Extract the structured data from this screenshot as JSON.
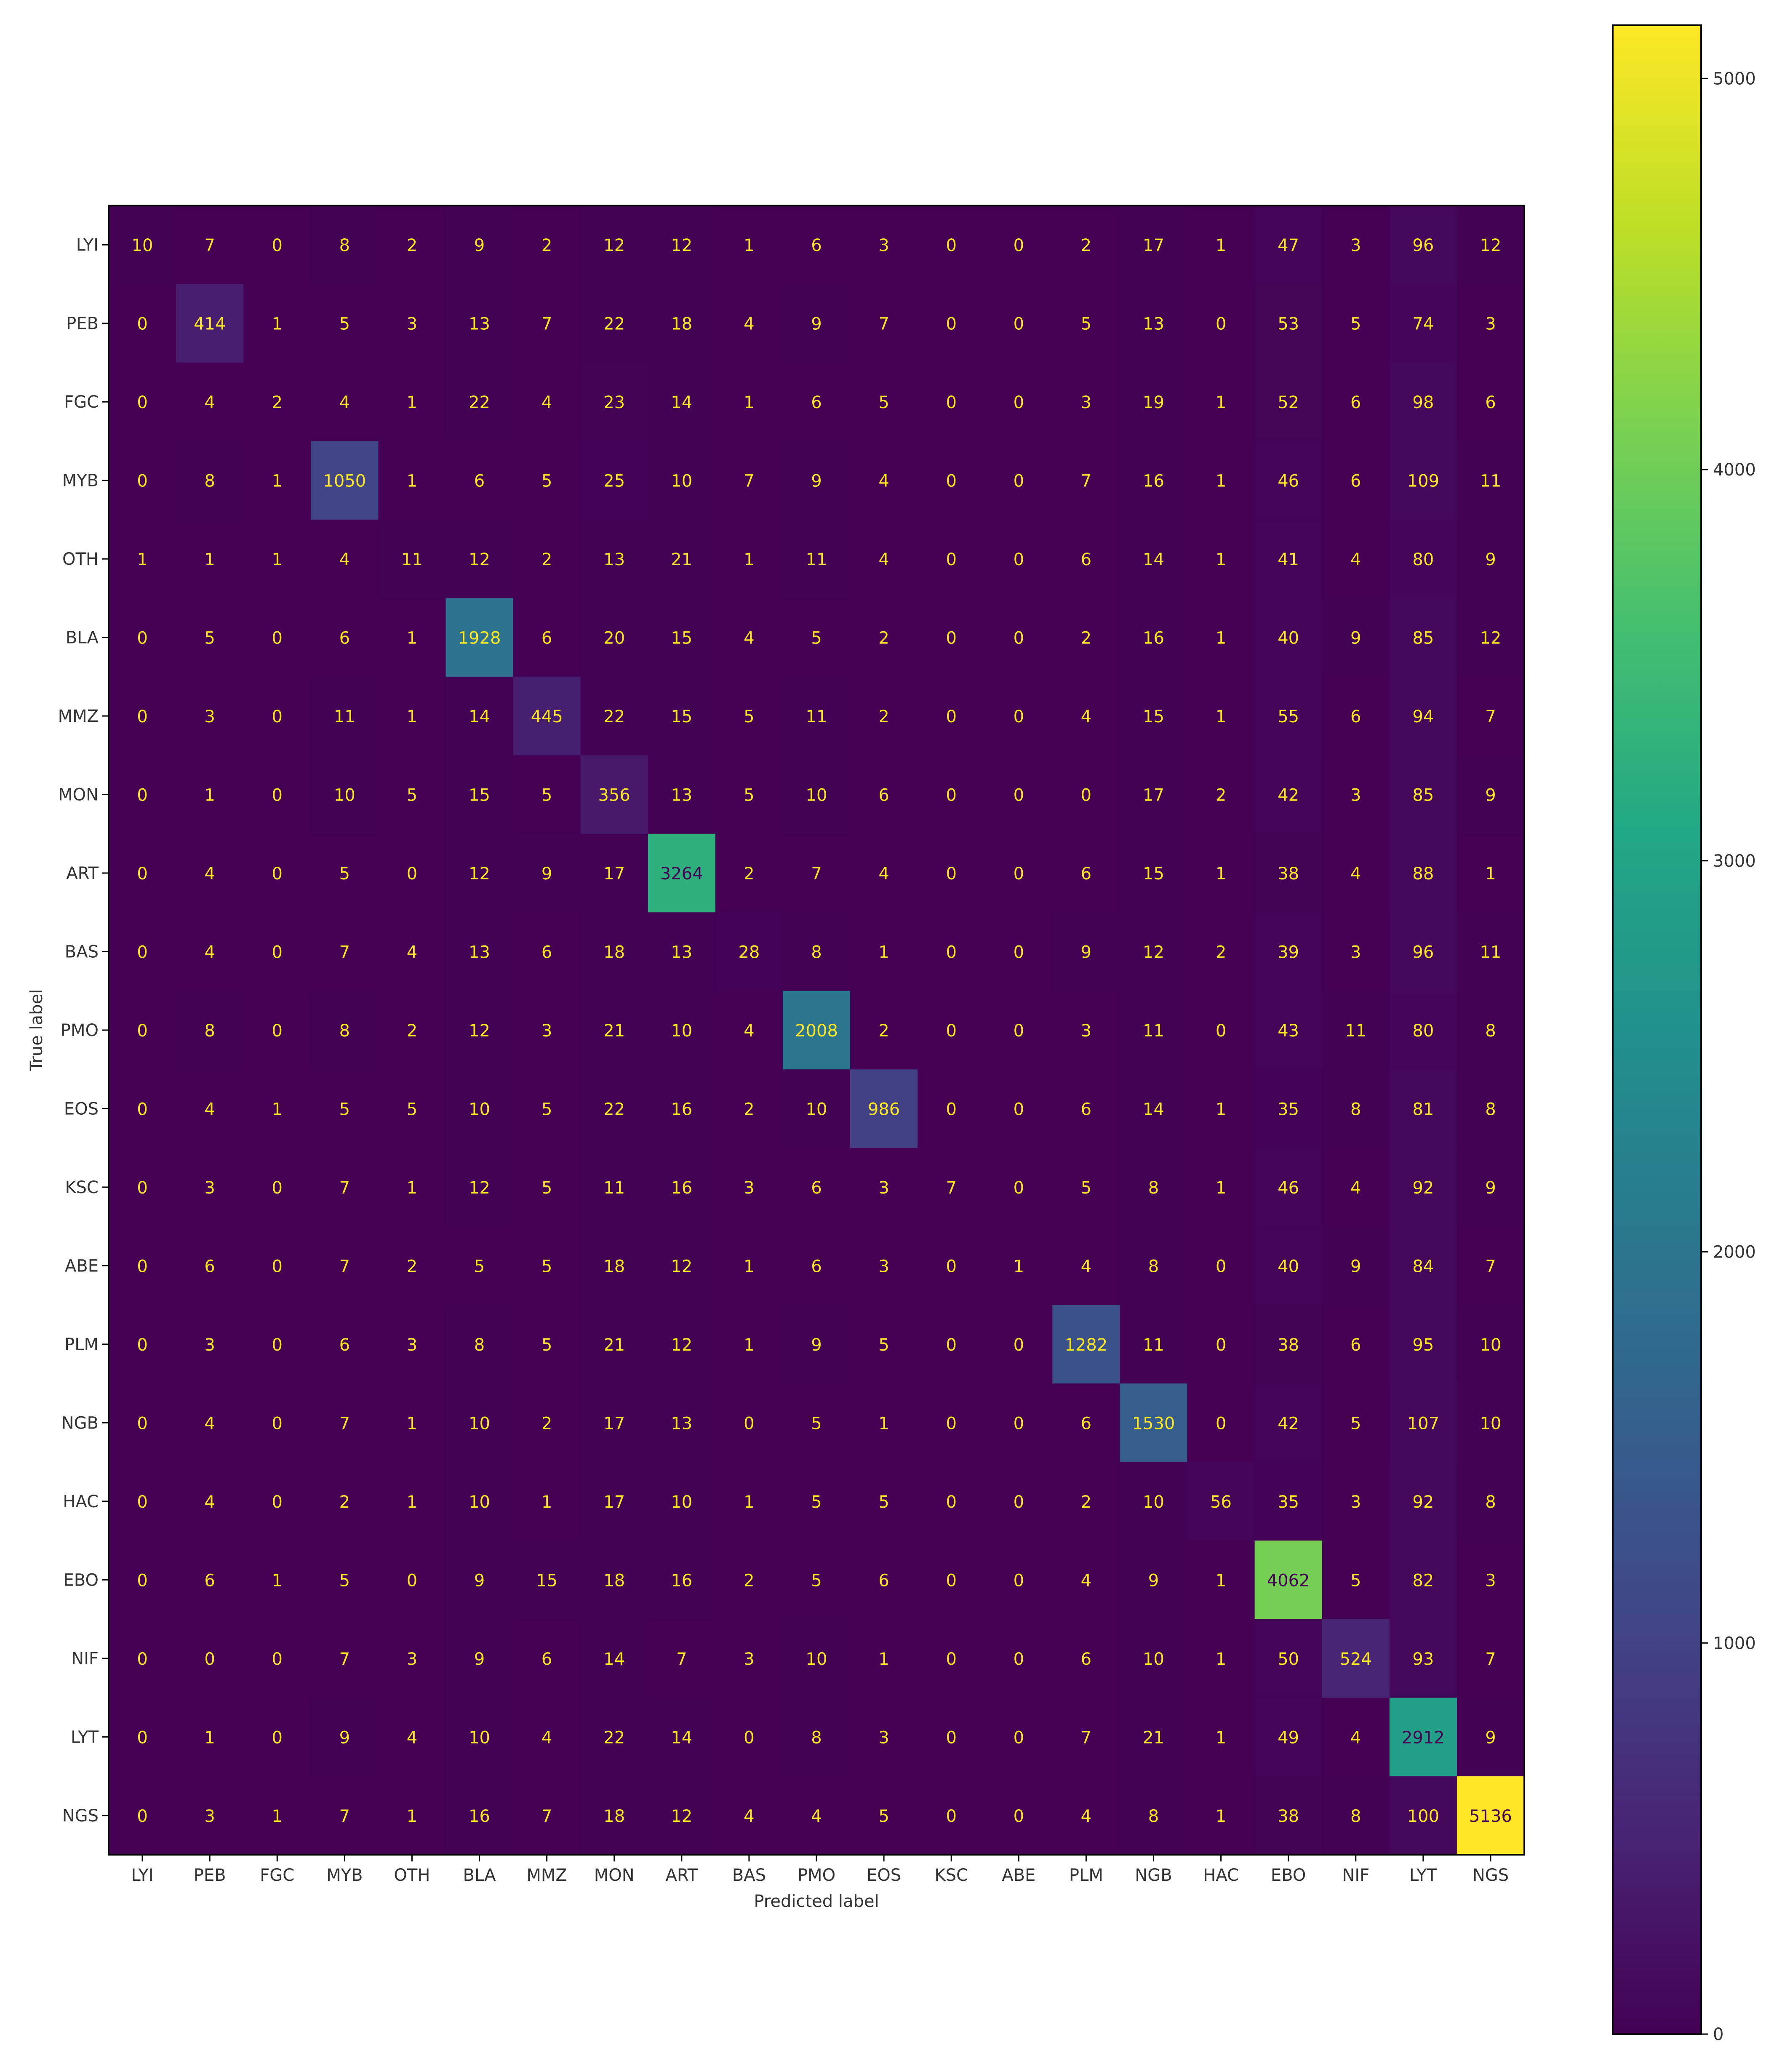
{
  "chart_data": {
    "type": "heatmap",
    "title": "",
    "xlabel": "Predicted label",
    "ylabel": "True label",
    "x_categories": [
      "LYI",
      "PEB",
      "FGC",
      "MYB",
      "OTH",
      "BLA",
      "MMZ",
      "MON",
      "ART",
      "BAS",
      "PMO",
      "EOS",
      "KSC",
      "ABE",
      "PLM",
      "NGB",
      "HAC",
      "EBO",
      "NIF",
      "LYT",
      "NGS"
    ],
    "y_categories": [
      "LYI",
      "PEB",
      "FGC",
      "MYB",
      "OTH",
      "BLA",
      "MMZ",
      "MON",
      "ART",
      "BAS",
      "PMO",
      "EOS",
      "KSC",
      "ABE",
      "PLM",
      "NGB",
      "HAC",
      "EBO",
      "NIF",
      "LYT",
      "NGS"
    ],
    "matrix": [
      [
        10,
        7,
        0,
        8,
        2,
        9,
        2,
        12,
        12,
        1,
        6,
        3,
        0,
        0,
        2,
        17,
        1,
        47,
        3,
        96,
        12
      ],
      [
        0,
        414,
        1,
        5,
        3,
        13,
        7,
        22,
        18,
        4,
        9,
        7,
        0,
        0,
        5,
        13,
        0,
        53,
        5,
        74,
        3
      ],
      [
        0,
        4,
        2,
        4,
        1,
        22,
        4,
        23,
        14,
        1,
        6,
        5,
        0,
        0,
        3,
        19,
        1,
        52,
        6,
        98,
        6
      ],
      [
        0,
        8,
        1,
        1050,
        1,
        6,
        5,
        25,
        10,
        7,
        9,
        4,
        0,
        0,
        7,
        16,
        1,
        46,
        6,
        109,
        11
      ],
      [
        1,
        1,
        1,
        4,
        11,
        12,
        2,
        13,
        21,
        1,
        11,
        4,
        0,
        0,
        6,
        14,
        1,
        41,
        4,
        80,
        9
      ],
      [
        0,
        5,
        0,
        6,
        1,
        1928,
        6,
        20,
        15,
        4,
        5,
        2,
        0,
        0,
        2,
        16,
        1,
        40,
        9,
        85,
        12
      ],
      [
        0,
        3,
        0,
        11,
        1,
        14,
        445,
        22,
        15,
        5,
        11,
        2,
        0,
        0,
        4,
        15,
        1,
        55,
        6,
        94,
        7
      ],
      [
        0,
        1,
        0,
        10,
        5,
        15,
        5,
        356,
        13,
        5,
        10,
        6,
        0,
        0,
        0,
        17,
        2,
        42,
        3,
        85,
        9
      ],
      [
        0,
        4,
        0,
        5,
        0,
        12,
        9,
        17,
        3264,
        2,
        7,
        4,
        0,
        0,
        6,
        15,
        1,
        38,
        4,
        88,
        1
      ],
      [
        0,
        4,
        0,
        7,
        4,
        13,
        6,
        18,
        13,
        28,
        8,
        1,
        0,
        0,
        9,
        12,
        2,
        39,
        3,
        96,
        11
      ],
      [
        0,
        8,
        0,
        8,
        2,
        12,
        3,
        21,
        10,
        4,
        2008,
        2,
        0,
        0,
        3,
        11,
        0,
        43,
        11,
        80,
        8
      ],
      [
        0,
        4,
        1,
        5,
        5,
        10,
        5,
        22,
        16,
        2,
        10,
        986,
        0,
        0,
        6,
        14,
        1,
        35,
        8,
        81,
        8
      ],
      [
        0,
        3,
        0,
        7,
        1,
        12,
        5,
        11,
        16,
        3,
        6,
        3,
        7,
        0,
        5,
        8,
        1,
        46,
        4,
        92,
        9
      ],
      [
        0,
        6,
        0,
        7,
        2,
        5,
        5,
        18,
        12,
        1,
        6,
        3,
        0,
        1,
        4,
        8,
        0,
        40,
        9,
        84,
        7
      ],
      [
        0,
        3,
        0,
        6,
        3,
        8,
        5,
        21,
        12,
        1,
        9,
        5,
        0,
        0,
        1282,
        11,
        0,
        38,
        6,
        95,
        10
      ],
      [
        0,
        4,
        0,
        7,
        1,
        10,
        2,
        17,
        13,
        0,
        5,
        1,
        0,
        0,
        6,
        1530,
        0,
        42,
        5,
        107,
        10
      ],
      [
        0,
        4,
        0,
        2,
        1,
        10,
        1,
        17,
        10,
        1,
        5,
        5,
        0,
        0,
        2,
        10,
        56,
        35,
        3,
        92,
        8
      ],
      [
        0,
        6,
        1,
        5,
        0,
        9,
        15,
        18,
        16,
        2,
        5,
        6,
        0,
        0,
        4,
        9,
        1,
        4062,
        5,
        82,
        3
      ],
      [
        0,
        0,
        0,
        7,
        3,
        9,
        6,
        14,
        7,
        3,
        10,
        1,
        0,
        0,
        6,
        10,
        1,
        50,
        524,
        93,
        7
      ],
      [
        0,
        1,
        0,
        9,
        4,
        10,
        4,
        22,
        14,
        0,
        8,
        3,
        0,
        0,
        7,
        21,
        1,
        49,
        4,
        2912,
        9
      ],
      [
        0,
        3,
        1,
        7,
        1,
        16,
        7,
        18,
        12,
        4,
        4,
        5,
        0,
        0,
        4,
        8,
        1,
        38,
        8,
        100,
        5136
      ]
    ],
    "colormap": "viridis",
    "vmin": 0,
    "vmax": 5136,
    "colorbar_ticks": [
      0,
      1000,
      2000,
      3000,
      4000,
      5000
    ],
    "grid": false,
    "legend": "colorbar-right"
  }
}
